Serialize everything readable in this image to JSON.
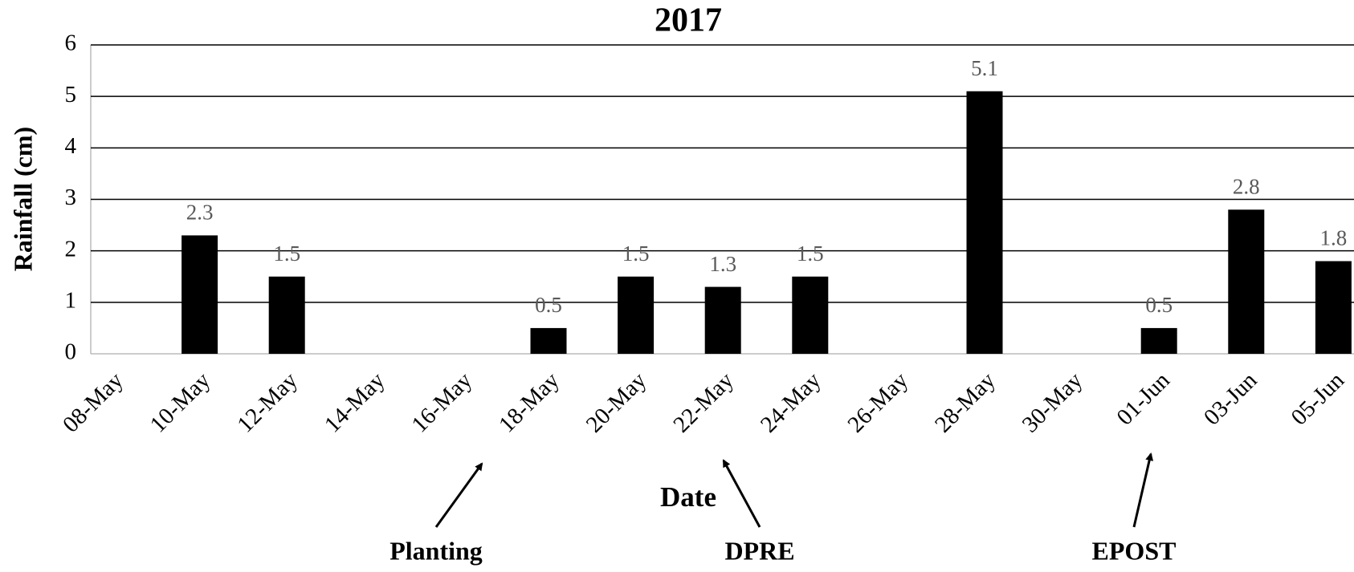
{
  "chart_data": {
    "type": "bar",
    "title": "2017",
    "x_label": "Date",
    "y_label": "Rainfall (cm)",
    "categories": [
      "08-May",
      "10-May",
      "12-May",
      "14-May",
      "16-May",
      "18-May",
      "20-May",
      "22-May",
      "24-May",
      "26-May",
      "28-May",
      "30-May",
      "01-Jun",
      "03-Jun",
      "05-Jun"
    ],
    "values": [
      null,
      2.3,
      1.5,
      null,
      null,
      0.5,
      1.5,
      1.3,
      1.5,
      null,
      5.1,
      null,
      0.5,
      2.8,
      1.8
    ],
    "color": "#000000",
    "ylim": [
      0,
      6
    ],
    "yticks": [
      0,
      1,
      2,
      3,
      4,
      5,
      6
    ],
    "grid": true,
    "annotations": [
      {
        "text": "Planting",
        "category": "18-May"
      },
      {
        "text": "DPRE",
        "category": "22-May"
      },
      {
        "text": "EPOST",
        "category": "01-Jun"
      }
    ]
  }
}
